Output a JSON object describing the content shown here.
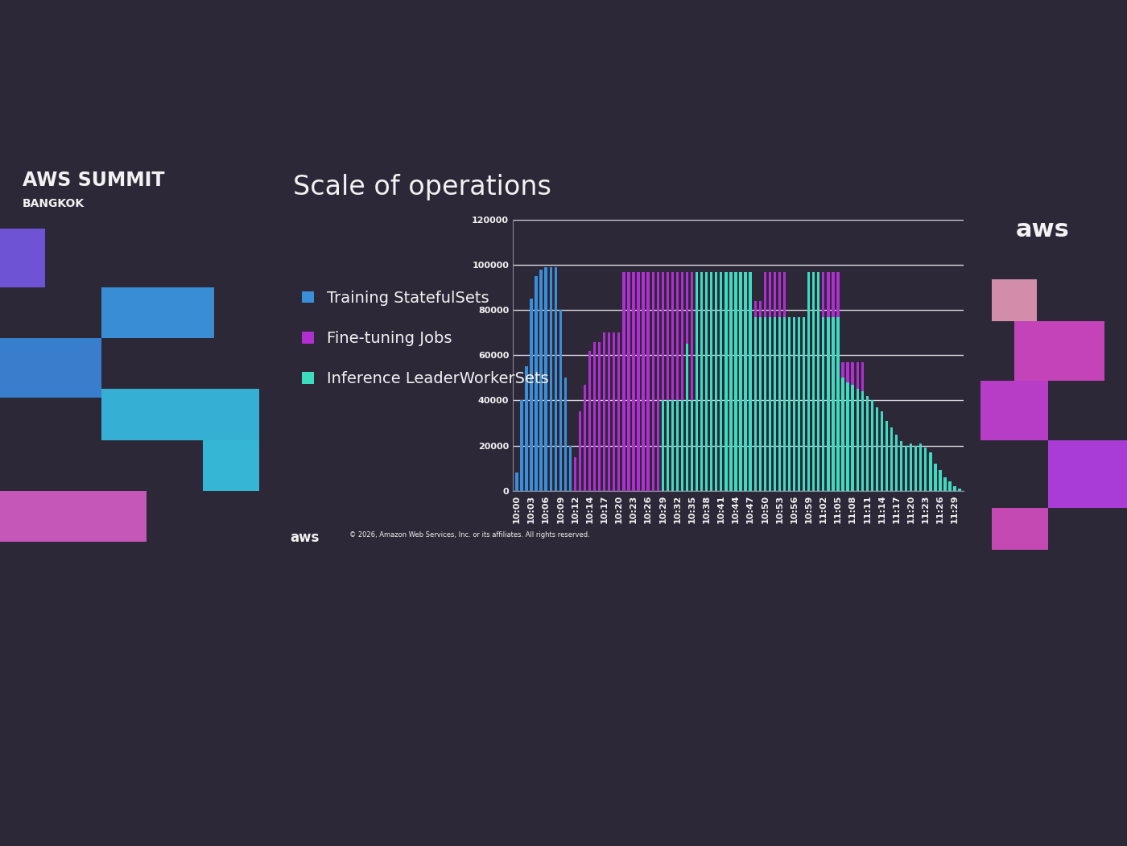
{
  "slide": {
    "event": "AWS SUMMIT",
    "location": "BANGKOK",
    "logo": "aws",
    "copyright": "© 2026, Amazon Web Services, Inc. or its affiliates. All rights reserved."
  },
  "chart_data": {
    "type": "bar",
    "title": "Scale of operations",
    "stacked": false,
    "grid": true,
    "legend": "center left",
    "categories": [
      "10:00",
      null,
      null,
      "10:03",
      null,
      null,
      "10:06",
      null,
      null,
      "10:09",
      null,
      null,
      "10:12",
      null,
      null,
      "10:14",
      null,
      null,
      "10:17",
      null,
      null,
      "10:20",
      null,
      null,
      "10:23",
      null,
      null,
      "10:26",
      null,
      null,
      "10:29",
      null,
      null,
      "10:32",
      null,
      null,
      "10:35",
      null,
      null,
      "10:38",
      null,
      null,
      "10:41",
      null,
      null,
      "10:44",
      null,
      null,
      "10:47",
      null,
      null,
      "10:50",
      null,
      null,
      "10:53",
      null,
      null,
      "10:56",
      null,
      null,
      "10:59",
      null,
      null,
      "11:02",
      null,
      null,
      "11:05",
      null,
      null,
      "11:08",
      null,
      null,
      "11:11",
      null,
      null,
      "11:14",
      null,
      null,
      "11:17",
      null,
      null,
      "11:20",
      null,
      null,
      "11:23",
      null,
      null,
      "11:26",
      null,
      null,
      "11:29",
      null
    ],
    "ylim": [
      0,
      120000
    ],
    "yticks": [
      0,
      20000,
      40000,
      60000,
      80000,
      100000,
      120000
    ],
    "series": [
      {
        "name": "Training StatefulSets",
        "color": "#3b8fd9",
        "values": [
          8000,
          40000,
          55000,
          85000,
          95000,
          98000,
          99000,
          99000,
          99000,
          80000,
          50000,
          20000,
          0,
          0,
          0,
          0,
          0,
          0,
          0,
          0,
          0,
          0,
          0,
          0,
          0,
          0,
          0,
          0,
          0,
          0,
          0,
          0,
          0,
          0,
          0,
          0,
          0,
          0,
          0,
          0,
          0,
          0,
          0,
          0,
          0,
          0,
          0,
          0,
          0,
          0,
          0,
          0,
          0,
          0,
          0,
          0,
          0,
          0,
          0,
          0,
          0,
          0,
          0,
          0,
          0,
          0,
          0,
          0,
          0,
          0,
          0,
          0,
          0,
          0,
          0,
          0,
          0,
          0,
          0,
          0,
          0,
          0,
          0,
          0,
          0,
          0,
          0,
          0,
          0,
          0,
          0,
          0
        ]
      },
      {
        "name": "Fine-tuning Jobs",
        "color": "#b02fd0",
        "values": [
          0,
          0,
          0,
          0,
          0,
          0,
          0,
          0,
          0,
          0,
          0,
          0,
          15000,
          35000,
          47000,
          62000,
          66000,
          66000,
          70000,
          70000,
          70000,
          70000,
          97000,
          97000,
          97000,
          97000,
          97000,
          97000,
          97000,
          97000,
          97000,
          97000,
          97000,
          97000,
          97000,
          97000,
          97000,
          97000,
          97000,
          97000,
          97000,
          97000,
          97000,
          97000,
          97000,
          97000,
          97000,
          97000,
          97000,
          84000,
          84000,
          97000,
          97000,
          97000,
          97000,
          97000,
          70000,
          70000,
          70000,
          70000,
          70000,
          70000,
          70000,
          97000,
          97000,
          97000,
          97000,
          57000,
          57000,
          57000,
          57000,
          57000,
          0,
          0,
          0,
          0,
          0,
          0,
          0,
          0,
          0,
          0,
          0,
          0,
          0,
          0,
          0,
          0,
          0,
          0,
          0,
          0
        ]
      },
      {
        "name": "Inference LeaderWorkerSets",
        "color": "#3ddbc0",
        "values": [
          0,
          0,
          0,
          0,
          0,
          0,
          0,
          0,
          0,
          0,
          0,
          0,
          0,
          0,
          0,
          0,
          0,
          0,
          0,
          0,
          0,
          0,
          0,
          0,
          0,
          0,
          0,
          0,
          0,
          0,
          40000,
          40000,
          40000,
          40000,
          40000,
          65000,
          40000,
          97000,
          97000,
          97000,
          97000,
          97000,
          97000,
          97000,
          97000,
          97000,
          97000,
          97000,
          97000,
          77000,
          77000,
          77000,
          77000,
          77000,
          77000,
          77000,
          77000,
          77000,
          77000,
          77000,
          97000,
          97000,
          97000,
          77000,
          77000,
          77000,
          77000,
          50000,
          48000,
          47000,
          45000,
          44000,
          42000,
          40000,
          37000,
          35000,
          31000,
          28000,
          25000,
          22000,
          20000,
          21000,
          20000,
          21000,
          19000,
          17000,
          12000,
          9000,
          6000,
          4000,
          2000,
          1000
        ]
      }
    ]
  }
}
